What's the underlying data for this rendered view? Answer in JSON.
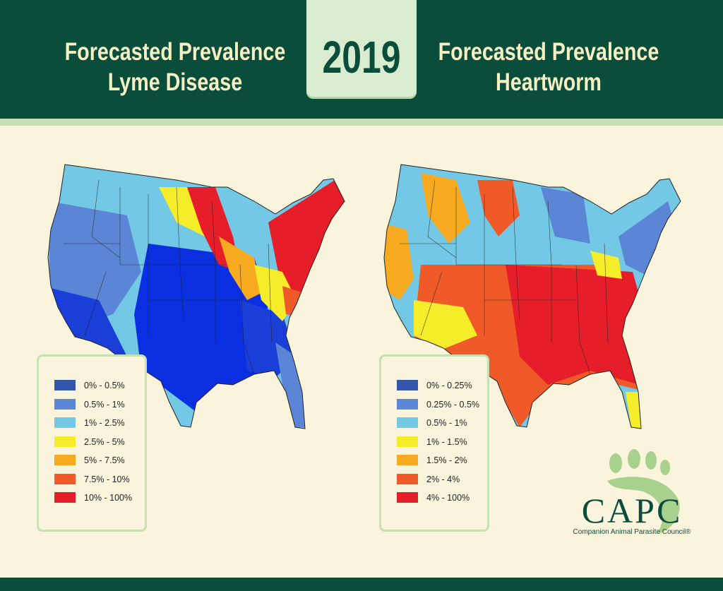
{
  "header": {
    "left_title_line1": "Forecasted Prevalence",
    "left_title_line2": "Lyme Disease",
    "year": "2019",
    "right_title_line1": "Forecasted Prevalence",
    "right_title_line2": "Heartworm"
  },
  "colors": {
    "header_bg": "#0a4d3a",
    "page_bg": "#fbf4dc",
    "year_box": "#d9ecd0",
    "accent_green": "#c6e0b4"
  },
  "maps": [
    {
      "name": "lyme-disease-map",
      "legend": [
        {
          "label": "0% - 0.5%",
          "color": "#3355aa"
        },
        {
          "label": "0.5% - 1%",
          "color": "#5b86d6"
        },
        {
          "label": "1% - 2.5%",
          "color": "#73c8e6"
        },
        {
          "label": "2.5% - 5%",
          "color": "#f5ec2a"
        },
        {
          "label": "5% - 7.5%",
          "color": "#f7a91f"
        },
        {
          "label": "7.5% - 10%",
          "color": "#f05a28"
        },
        {
          "label": "10% - 100%",
          "color": "#e61e2a"
        }
      ]
    },
    {
      "name": "heartworm-map",
      "legend": [
        {
          "label": "0% - 0.25%",
          "color": "#3355aa"
        },
        {
          "label": "0.25% - 0.5%",
          "color": "#5b86d6"
        },
        {
          "label": "0.5% - 1%",
          "color": "#73c8e6"
        },
        {
          "label": "1% - 1.5%",
          "color": "#f5ec2a"
        },
        {
          "label": "1.5% - 2%",
          "color": "#f7a91f"
        },
        {
          "label": "2% - 4%",
          "color": "#f05a28"
        },
        {
          "label": "4% - 100%",
          "color": "#e61e2a"
        }
      ]
    }
  ],
  "logo": {
    "name": "CAPC",
    "tagline": "Companion Animal Parasite Council®"
  }
}
